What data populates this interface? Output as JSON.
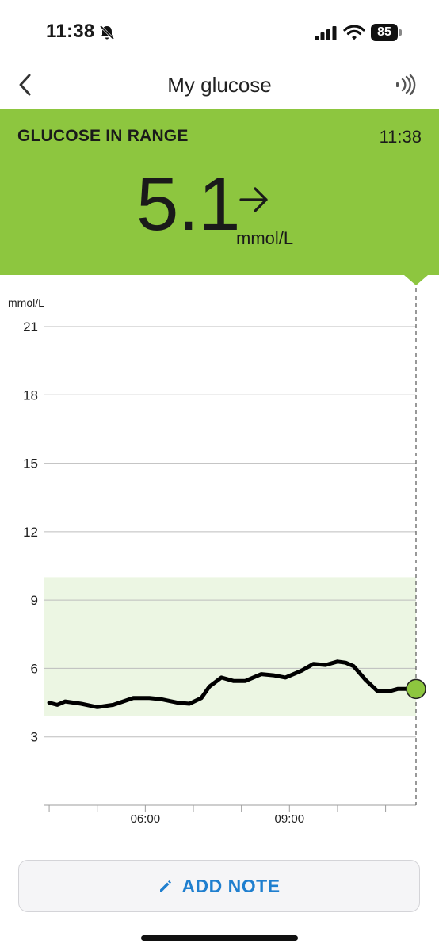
{
  "status_bar": {
    "time": "11:38",
    "battery_percent": "85"
  },
  "nav": {
    "title": "My glucose"
  },
  "banner": {
    "status": "GLUCOSE IN RANGE",
    "time": "11:38",
    "value": "5.1",
    "unit": "mmol/L",
    "trend": "steady",
    "color": "#8dc63f"
  },
  "chart_data": {
    "type": "line",
    "y_unit_label": "mmol/L",
    "y_ticks": [
      "21",
      "18",
      "15",
      "12",
      "9",
      "6",
      "3"
    ],
    "ylim": [
      0,
      21
    ],
    "x_tick_labels": [
      "06:00",
      "09:00"
    ],
    "target_range": [
      3.9,
      10.0
    ],
    "target_range_color": "#ecf6e3",
    "current_point_color": "#8dc63f",
    "series": [
      {
        "x": [
          "04:00",
          "04:10",
          "04:20",
          "04:40",
          "05:00",
          "05:20",
          "05:45",
          "06:05",
          "06:20",
          "06:40",
          "06:55",
          "07:10",
          "07:20",
          "07:35",
          "07:50",
          "08:05",
          "08:25",
          "08:40",
          "08:55",
          "09:15",
          "09:30",
          "09:45",
          "10:00",
          "10:10",
          "10:20",
          "10:35",
          "10:50",
          "11:05",
          "11:15",
          "11:25",
          "11:38"
        ],
        "y": [
          4.5,
          4.4,
          4.55,
          4.45,
          4.3,
          4.4,
          4.7,
          4.7,
          4.65,
          4.5,
          4.45,
          4.7,
          5.2,
          5.6,
          5.45,
          5.45,
          5.75,
          5.7,
          5.6,
          5.9,
          6.2,
          6.15,
          6.3,
          6.25,
          6.1,
          5.5,
          5.0,
          5.0,
          5.1,
          5.1,
          5.1
        ]
      }
    ]
  },
  "actions": {
    "add_note_label": "ADD NOTE"
  }
}
